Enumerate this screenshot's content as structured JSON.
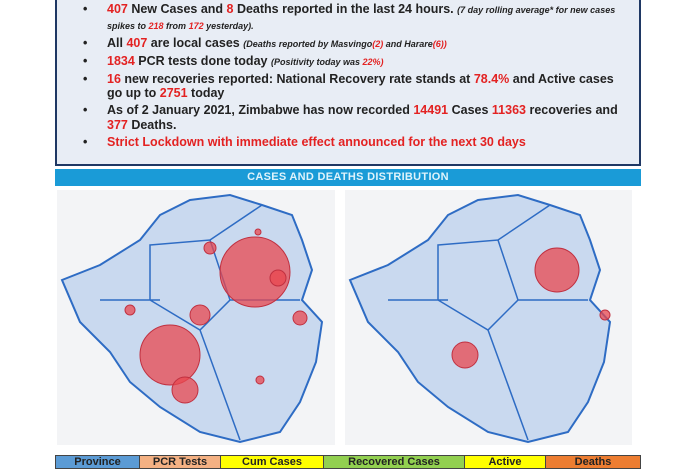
{
  "bullets": {
    "b1": {
      "n1": "407",
      "t1": " New Cases and ",
      "n2": "8",
      "t2": " Deaths reported in the last 24 hours. ",
      "s1": "(7 day rolling average* for new cases spikes to ",
      "s2": "218",
      "s3": " from ",
      "s4": "172",
      "s5": " yesterday)."
    },
    "b2": {
      "t1": "All ",
      "n1": "407",
      "t2": " are local cases ",
      "s1": "(Deaths reported by Masvingo",
      "s2": "(2)",
      "s3": " and Harare",
      "s4": "(6))"
    },
    "b3": {
      "n1": "1834",
      "t1": " PCR tests done today ",
      "s1": "(Positivity today was ",
      "s2": "22%)"
    },
    "b4": {
      "n1": "16",
      "t1": " new recoveries reported: National Recovery rate stands at ",
      "n2": "78.4%",
      "t2": " and Active cases go up to ",
      "n3": "2751",
      "t3": " today"
    },
    "b5": {
      "t1": "As of 2 January 2021, Zimbabwe has now recorded ",
      "n1": "14491",
      "t2": "  Cases ",
      "n2": "11363",
      "t3": " recoveries and ",
      "n3": "377",
      "t4": " Deaths."
    },
    "b6": {
      "t1": "Strict Lockdown with immediate effect announced for the next 30 days"
    }
  },
  "section_title": "CASES AND DEATHS DISTRIBUTION",
  "maps": {
    "left": "cases",
    "right": "deaths",
    "marker_color": "#e8474f",
    "fill": "#c9d9ef",
    "border": "#2e6cc4"
  },
  "table_headers": [
    {
      "label": "Province",
      "color": "#5b9bd5"
    },
    {
      "label": "PCR Tests",
      "color": "#f4b183"
    },
    {
      "label": "Cum Cases",
      "color": "#ffff00"
    },
    {
      "label": "Recovered Cases",
      "color": "#92d050"
    },
    {
      "label": "Active",
      "color": "#ffff00"
    },
    {
      "label": "Deaths",
      "color": "#ed7d31"
    }
  ]
}
